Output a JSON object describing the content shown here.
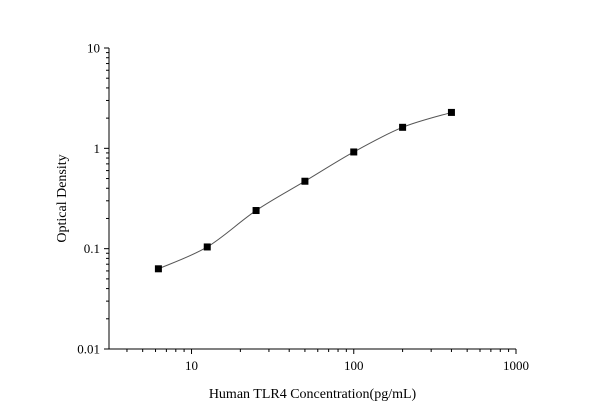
{
  "chart_data": {
    "type": "scatter",
    "title": "",
    "xlabel": "Human TLR4 Concentration(pg/mL)",
    "ylabel": "Optical Density",
    "x_scale": "log",
    "y_scale": "log",
    "xlim": [
      3.1,
      1000
    ],
    "ylim": [
      0.01,
      10
    ],
    "x_ticks": [
      10,
      100,
      1000
    ],
    "x_tick_labels": [
      "10",
      "100",
      "1000"
    ],
    "y_ticks": [
      0.01,
      0.1,
      1,
      10
    ],
    "y_tick_labels": [
      "0.01",
      "0.1",
      "1",
      "10"
    ],
    "grid": false,
    "legend": "none",
    "series": [
      {
        "x": [
          6.25,
          12.5,
          25,
          50,
          100,
          200,
          400
        ],
        "y": [
          0.063,
          0.104,
          0.24,
          0.47,
          0.92,
          1.62,
          2.28
        ],
        "marker": "square",
        "line": "smooth fit",
        "color": "#000000"
      }
    ]
  }
}
